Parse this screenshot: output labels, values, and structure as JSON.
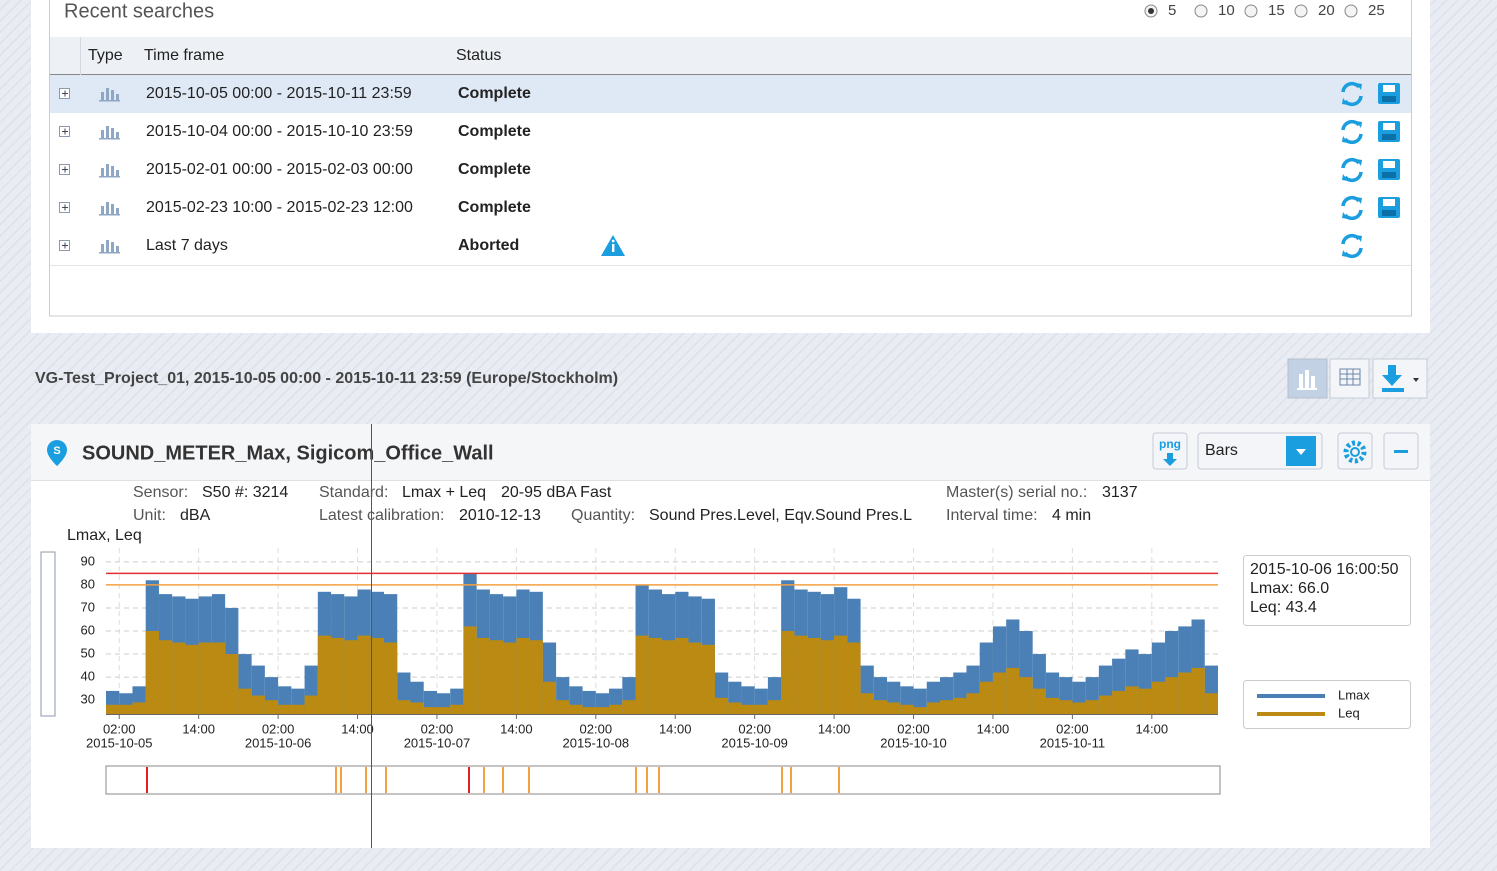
{
  "recent_searches": {
    "title": "Recent searches",
    "page_sizes": [
      5,
      10,
      15,
      20,
      25
    ],
    "selected_page_size": 5,
    "columns": [
      "Type",
      "Time frame",
      "Status"
    ],
    "rows": [
      {
        "time_frame": "2015-10-05 00:00 - 2015-10-11 23:59",
        "status": "Complete",
        "status_color": "#33bb22",
        "info": false,
        "save": true,
        "selected": true
      },
      {
        "time_frame": "2015-10-04 00:00 - 2015-10-10 23:59",
        "status": "Complete",
        "status_color": "#33bb22",
        "info": false,
        "save": true,
        "selected": false
      },
      {
        "time_frame": "2015-02-01 00:00 - 2015-02-03 00:00",
        "status": "Complete",
        "status_color": "#33bb22",
        "info": false,
        "save": true,
        "selected": false
      },
      {
        "time_frame": "2015-02-23 10:00 - 2015-02-23 12:00",
        "status": "Complete",
        "status_color": "#33bb22",
        "info": false,
        "save": true,
        "selected": false
      },
      {
        "time_frame": "Last 7 days",
        "status": "Aborted",
        "status_color": "#e8401a",
        "info": true,
        "save": false,
        "selected": false
      }
    ]
  },
  "project_title": "VG-Test_Project_01, 2015-10-05 00:00 - 2015-10-11 23:59 (Europe/Stockholm)",
  "panel": {
    "title": "SOUND_METER_Max, Sigicom_Office_Wall",
    "export_label": "png",
    "chart_style": "Bars",
    "sensor_label": "Sensor:",
    "sensor": "S50 #: 3214",
    "unit_label": "Unit:",
    "unit": "dBA",
    "standard_label": "Standard:",
    "standard": "Lmax + Leq",
    "standard_range": "20-95 dBA Fast",
    "calibration_label": "Latest calibration:",
    "calibration": "2010-12-13",
    "quantity_label": "Quantity:",
    "quantity": "Sound Pres.Level, Eqv.Sound Pres.L",
    "master_label": "Master(s) serial no.:",
    "master": "3137",
    "interval_label": "Interval time:",
    "interval": "4 min"
  },
  "chart_data": {
    "type": "bar",
    "y_label": "Lmax, Leq",
    "x": [
      "2015-10-05 00:00",
      "2015-10-05 02:00",
      "2015-10-05 04:00",
      "2015-10-05 06:00",
      "2015-10-05 08:00",
      "2015-10-05 10:00",
      "2015-10-05 12:00",
      "2015-10-05 14:00",
      "2015-10-05 16:00",
      "2015-10-05 18:00",
      "2015-10-05 20:00",
      "2015-10-05 22:00",
      "2015-10-06 00:00",
      "2015-10-06 02:00",
      "2015-10-06 04:00",
      "2015-10-06 06:00",
      "2015-10-06 08:00",
      "2015-10-06 10:00",
      "2015-10-06 12:00",
      "2015-10-06 14:00",
      "2015-10-06 16:00",
      "2015-10-06 18:00",
      "2015-10-06 20:00",
      "2015-10-06 22:00",
      "2015-10-07 00:00",
      "2015-10-07 02:00",
      "2015-10-07 04:00",
      "2015-10-07 06:00",
      "2015-10-07 08:00",
      "2015-10-07 10:00",
      "2015-10-07 12:00",
      "2015-10-07 14:00",
      "2015-10-07 16:00",
      "2015-10-07 18:00",
      "2015-10-07 20:00",
      "2015-10-07 22:00",
      "2015-10-08 00:00",
      "2015-10-08 02:00",
      "2015-10-08 04:00",
      "2015-10-08 06:00",
      "2015-10-08 08:00",
      "2015-10-08 10:00",
      "2015-10-08 12:00",
      "2015-10-08 14:00",
      "2015-10-08 16:00",
      "2015-10-08 18:00",
      "2015-10-08 20:00",
      "2015-10-08 22:00",
      "2015-10-09 00:00",
      "2015-10-09 02:00",
      "2015-10-09 04:00",
      "2015-10-09 06:00",
      "2015-10-09 08:00",
      "2015-10-09 10:00",
      "2015-10-09 12:00",
      "2015-10-09 14:00",
      "2015-10-09 16:00",
      "2015-10-09 18:00",
      "2015-10-09 20:00",
      "2015-10-09 22:00",
      "2015-10-10 00:00",
      "2015-10-10 02:00",
      "2015-10-10 04:00",
      "2015-10-10 06:00",
      "2015-10-10 08:00",
      "2015-10-10 10:00",
      "2015-10-10 12:00",
      "2015-10-10 14:00",
      "2015-10-10 16:00",
      "2015-10-10 18:00",
      "2015-10-10 20:00",
      "2015-10-10 22:00",
      "2015-10-11 00:00",
      "2015-10-11 02:00",
      "2015-10-11 04:00",
      "2015-10-11 06:00",
      "2015-10-11 08:00",
      "2015-10-11 10:00",
      "2015-10-11 12:00",
      "2015-10-11 14:00",
      "2015-10-11 16:00",
      "2015-10-11 18:00",
      "2015-10-11 20:00",
      "2015-10-11 22:00"
    ],
    "series": [
      {
        "name": "Lmax",
        "color": "#4a80b6",
        "values": [
          34,
          33,
          36,
          82,
          76,
          75,
          74,
          75,
          76,
          70,
          50,
          45,
          40,
          36,
          35,
          45,
          77,
          76,
          75,
          78,
          77,
          76,
          42,
          38,
          34,
          33,
          35,
          85,
          78,
          76,
          75,
          78,
          77,
          55,
          40,
          36,
          34,
          33,
          35,
          40,
          80,
          78,
          76,
          77,
          75,
          74,
          42,
          38,
          36,
          35,
          40,
          82,
          78,
          77,
          76,
          79,
          74,
          45,
          40,
          38,
          36,
          35,
          38,
          40,
          42,
          45,
          55,
          62,
          65,
          60,
          50,
          42,
          40,
          38,
          40,
          45,
          48,
          52,
          50,
          55,
          60,
          62,
          65,
          45
        ]
      },
      {
        "name": "Leq",
        "color": "#bb8a12",
        "values": [
          28,
          28,
          29,
          60,
          56,
          55,
          54,
          55,
          55,
          50,
          35,
          32,
          30,
          28,
          28,
          32,
          58,
          57,
          56,
          58,
          57,
          55,
          30,
          29,
          27,
          27,
          28,
          62,
          57,
          56,
          55,
          57,
          56,
          38,
          30,
          28,
          27,
          27,
          28,
          30,
          58,
          57,
          56,
          57,
          55,
          54,
          31,
          29,
          28,
          28,
          30,
          60,
          58,
          57,
          56,
          58,
          55,
          33,
          30,
          29,
          28,
          27,
          29,
          30,
          31,
          33,
          38,
          42,
          44,
          40,
          35,
          31,
          30,
          29,
          30,
          32,
          34,
          36,
          35,
          38,
          40,
          42,
          44,
          33
        ]
      }
    ],
    "xlim": [
      "2015-10-05 00:00",
      "2015-10-12 00:00"
    ],
    "xticks": [
      {
        "value": "2015-10-05 02:00",
        "label": "02:00"
      },
      {
        "value": "2015-10-05 14:00",
        "label": "14:00"
      },
      {
        "value": "2015-10-06 02:00",
        "label": "02:00"
      },
      {
        "value": "2015-10-06 14:00",
        "label": "14:00"
      },
      {
        "value": "2015-10-07 02:00",
        "label": "02:00"
      },
      {
        "value": "2015-10-07 14:00",
        "label": "14:00"
      },
      {
        "value": "2015-10-08 02:00",
        "label": "02:00"
      },
      {
        "value": "2015-10-08 14:00",
        "label": "14:00"
      },
      {
        "value": "2015-10-09 02:00",
        "label": "02:00"
      },
      {
        "value": "2015-10-09 14:00",
        "label": "14:00"
      },
      {
        "value": "2015-10-10 02:00",
        "label": "02:00"
      },
      {
        "value": "2015-10-10 14:00",
        "label": "14:00"
      },
      {
        "value": "2015-10-11 02:00",
        "label": "02:00"
      },
      {
        "value": "2015-10-11 14:00",
        "label": "14:00"
      }
    ],
    "xdate_labels": [
      {
        "value": "2015-10-05 02:00",
        "label": "2015-10-05"
      },
      {
        "value": "2015-10-06 02:00",
        "label": "2015-10-06"
      },
      {
        "value": "2015-10-07 02:00",
        "label": "2015-10-07"
      },
      {
        "value": "2015-10-08 02:00",
        "label": "2015-10-08"
      },
      {
        "value": "2015-10-09 02:00",
        "label": "2015-10-09"
      },
      {
        "value": "2015-10-10 02:00",
        "label": "2015-10-10"
      },
      {
        "value": "2015-10-11 02:00",
        "label": "2015-10-11"
      }
    ],
    "ylim": [
      24,
      96
    ],
    "yticks": [
      30,
      40,
      50,
      60,
      70,
      80,
      90
    ],
    "grid": true,
    "threshold_lines": [
      {
        "value": 85,
        "color": "#e03030"
      },
      {
        "value": 80,
        "color": "#f5a040"
      }
    ],
    "tooltip": {
      "time": "2015-10-06 16:00:50",
      "lines": [
        "Lmax: 66.0",
        "Leq: 43.4"
      ]
    },
    "legend_position": "right"
  }
}
